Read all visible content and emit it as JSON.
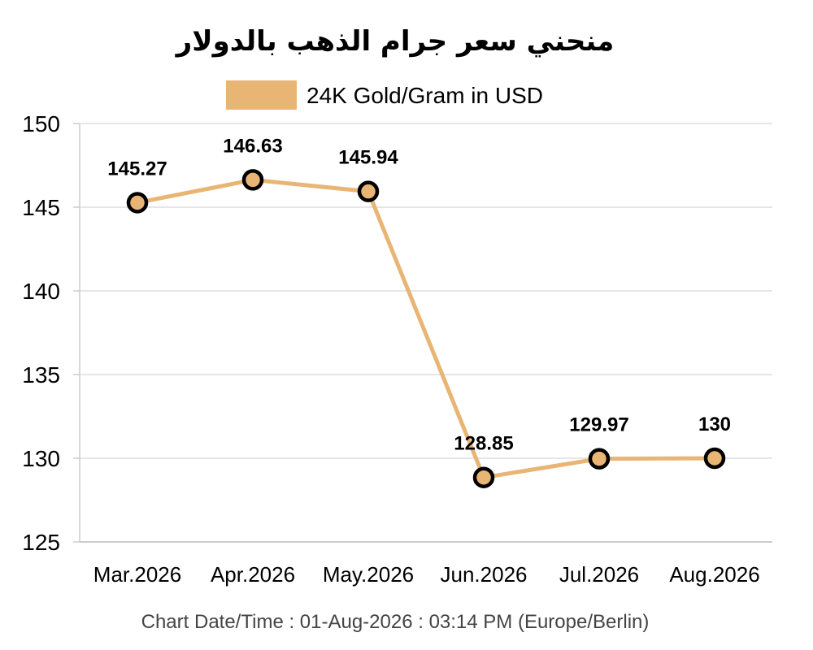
{
  "chart_data": {
    "type": "line",
    "title": "منحني سعر جرام الذهب بالدولار",
    "categories": [
      "Mar.2026",
      "Apr.2026",
      "May.2026",
      "Jun.2026",
      "Jul.2026",
      "Aug.2026"
    ],
    "series": [
      {
        "name": "24K Gold/Gram in USD",
        "values": [
          145.27,
          146.63,
          145.94,
          128.85,
          129.97,
          130
        ],
        "labels": [
          "145.27",
          "146.63",
          "145.94",
          "128.85",
          "129.97",
          "130"
        ],
        "color": "#E8B574"
      }
    ],
    "ylim": [
      125,
      150
    ],
    "yticks": [
      125,
      130,
      135,
      140,
      145,
      150
    ],
    "xlabel": "",
    "ylabel": "",
    "grid": true,
    "legend_position": "top"
  },
  "footer": {
    "text": "Chart Date/Time : 01-Aug-2026 : 03:14 PM (Europe/Berlin)"
  },
  "colors": {
    "line": "#E8B574",
    "marker_stroke": "#000000",
    "grid": "#DDDDDD",
    "axis": "#CCCCCC"
  }
}
